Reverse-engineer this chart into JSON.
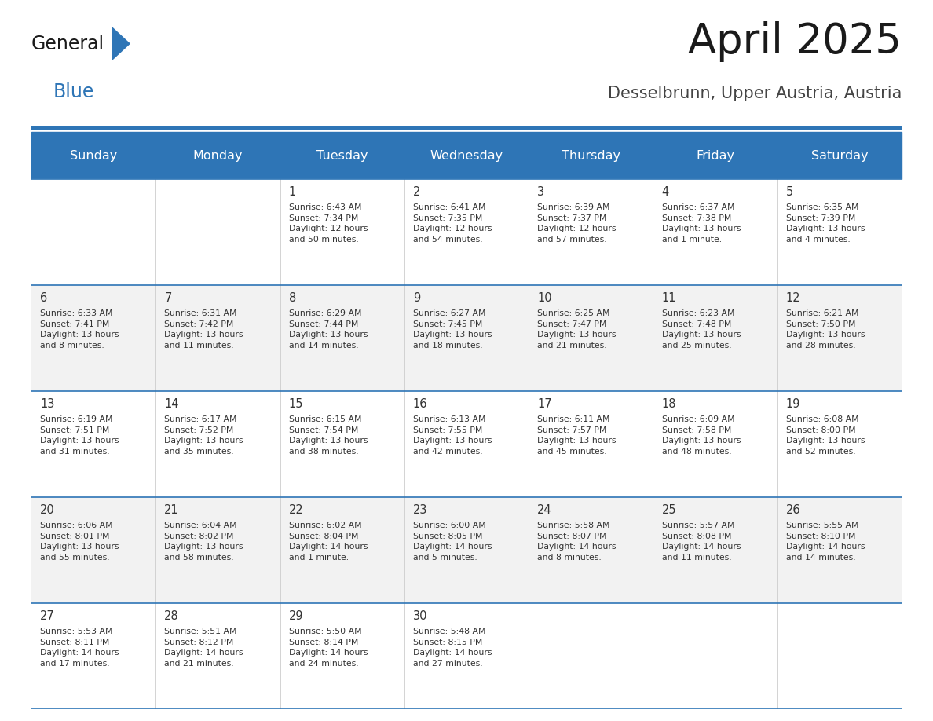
{
  "title": "April 2025",
  "subtitle": "Desselbrunn, Upper Austria, Austria",
  "header_bg": "#2E75B6",
  "header_text": "#FFFFFF",
  "row_bg_light": "#F2F2F2",
  "row_bg_white": "#FFFFFF",
  "separator_color": "#2E75B6",
  "day_headers": [
    "Sunday",
    "Monday",
    "Tuesday",
    "Wednesday",
    "Thursday",
    "Friday",
    "Saturday"
  ],
  "calendar": [
    [
      "",
      "",
      "1\nSunrise: 6:43 AM\nSunset: 7:34 PM\nDaylight: 12 hours\nand 50 minutes.",
      "2\nSunrise: 6:41 AM\nSunset: 7:35 PM\nDaylight: 12 hours\nand 54 minutes.",
      "3\nSunrise: 6:39 AM\nSunset: 7:37 PM\nDaylight: 12 hours\nand 57 minutes.",
      "4\nSunrise: 6:37 AM\nSunset: 7:38 PM\nDaylight: 13 hours\nand 1 minute.",
      "5\nSunrise: 6:35 AM\nSunset: 7:39 PM\nDaylight: 13 hours\nand 4 minutes."
    ],
    [
      "6\nSunrise: 6:33 AM\nSunset: 7:41 PM\nDaylight: 13 hours\nand 8 minutes.",
      "7\nSunrise: 6:31 AM\nSunset: 7:42 PM\nDaylight: 13 hours\nand 11 minutes.",
      "8\nSunrise: 6:29 AM\nSunset: 7:44 PM\nDaylight: 13 hours\nand 14 minutes.",
      "9\nSunrise: 6:27 AM\nSunset: 7:45 PM\nDaylight: 13 hours\nand 18 minutes.",
      "10\nSunrise: 6:25 AM\nSunset: 7:47 PM\nDaylight: 13 hours\nand 21 minutes.",
      "11\nSunrise: 6:23 AM\nSunset: 7:48 PM\nDaylight: 13 hours\nand 25 minutes.",
      "12\nSunrise: 6:21 AM\nSunset: 7:50 PM\nDaylight: 13 hours\nand 28 minutes."
    ],
    [
      "13\nSunrise: 6:19 AM\nSunset: 7:51 PM\nDaylight: 13 hours\nand 31 minutes.",
      "14\nSunrise: 6:17 AM\nSunset: 7:52 PM\nDaylight: 13 hours\nand 35 minutes.",
      "15\nSunrise: 6:15 AM\nSunset: 7:54 PM\nDaylight: 13 hours\nand 38 minutes.",
      "16\nSunrise: 6:13 AM\nSunset: 7:55 PM\nDaylight: 13 hours\nand 42 minutes.",
      "17\nSunrise: 6:11 AM\nSunset: 7:57 PM\nDaylight: 13 hours\nand 45 minutes.",
      "18\nSunrise: 6:09 AM\nSunset: 7:58 PM\nDaylight: 13 hours\nand 48 minutes.",
      "19\nSunrise: 6:08 AM\nSunset: 8:00 PM\nDaylight: 13 hours\nand 52 minutes."
    ],
    [
      "20\nSunrise: 6:06 AM\nSunset: 8:01 PM\nDaylight: 13 hours\nand 55 minutes.",
      "21\nSunrise: 6:04 AM\nSunset: 8:02 PM\nDaylight: 13 hours\nand 58 minutes.",
      "22\nSunrise: 6:02 AM\nSunset: 8:04 PM\nDaylight: 14 hours\nand 1 minute.",
      "23\nSunrise: 6:00 AM\nSunset: 8:05 PM\nDaylight: 14 hours\nand 5 minutes.",
      "24\nSunrise: 5:58 AM\nSunset: 8:07 PM\nDaylight: 14 hours\nand 8 minutes.",
      "25\nSunrise: 5:57 AM\nSunset: 8:08 PM\nDaylight: 14 hours\nand 11 minutes.",
      "26\nSunrise: 5:55 AM\nSunset: 8:10 PM\nDaylight: 14 hours\nand 14 minutes."
    ],
    [
      "27\nSunrise: 5:53 AM\nSunset: 8:11 PM\nDaylight: 14 hours\nand 17 minutes.",
      "28\nSunrise: 5:51 AM\nSunset: 8:12 PM\nDaylight: 14 hours\nand 21 minutes.",
      "29\nSunrise: 5:50 AM\nSunset: 8:14 PM\nDaylight: 14 hours\nand 24 minutes.",
      "30\nSunrise: 5:48 AM\nSunset: 8:15 PM\nDaylight: 14 hours\nand 27 minutes.",
      "",
      "",
      ""
    ]
  ],
  "logo_color1": "#1a1a1a",
  "logo_color2": "#2E75B6",
  "title_color": "#1a1a1a",
  "subtitle_color": "#444444",
  "cell_text_color": "#333333",
  "cell_date_color": "#333333",
  "fig_width": 11.88,
  "fig_height": 9.18,
  "dpi": 100
}
